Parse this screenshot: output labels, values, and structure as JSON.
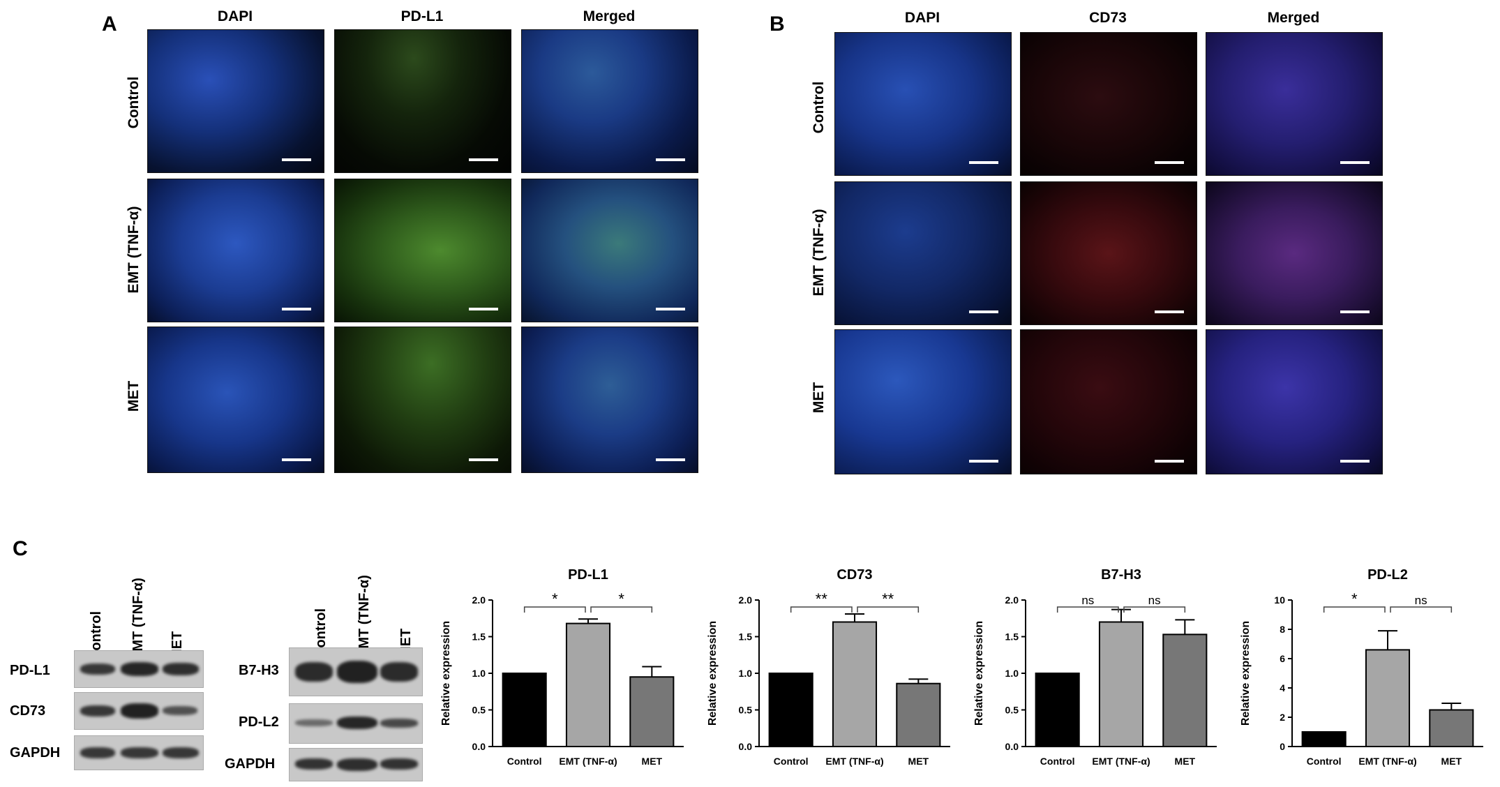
{
  "panels": {
    "A": {
      "letter": "A",
      "columns": [
        "DAPI",
        "PD-L1",
        "Merged"
      ],
      "rows": [
        "Control",
        "EMT (TNF-α)",
        "MET"
      ]
    },
    "B": {
      "letter": "B",
      "columns": [
        "DAPI",
        "CD73",
        "Merged"
      ],
      "rows": [
        "Control",
        "EMT (TNF-α)",
        "MET"
      ]
    },
    "C": {
      "letter": "C",
      "blot1": {
        "lanes": [
          "Control",
          "EMT (TNF-α)",
          "MET"
        ],
        "proteins": [
          "PD-L1",
          "CD73",
          "GAPDH"
        ]
      },
      "blot2": {
        "lanes": [
          "Control",
          "EMT (TNF-α)",
          "MET"
        ],
        "proteins": [
          "B7-H3",
          "PD-L2",
          "GAPDH"
        ]
      }
    }
  },
  "colors": {
    "dapi": "#1c3f9e",
    "pdl1": "#3f8a2a",
    "cd73": "#8a1a1a",
    "bar_control": "#000000",
    "bar_emt": "#a6a6a6",
    "bar_met": "#777777"
  },
  "chart_data": [
    {
      "type": "bar",
      "title": "PD-L1",
      "ylabel": "Relative expression",
      "categories": [
        "Control",
        "EMT (TNF-α)",
        "MET"
      ],
      "values": [
        1.0,
        1.68,
        0.95
      ],
      "errors": [
        0,
        0.06,
        0.14
      ],
      "ylim": [
        0,
        2.0
      ],
      "yticks": [
        "0.0",
        "0.5",
        "1.0",
        "1.5",
        "2.0"
      ],
      "significance": [
        "*",
        "*"
      ]
    },
    {
      "type": "bar",
      "title": "CD73",
      "ylabel": "Relative expression",
      "categories": [
        "Control",
        "EMT (TNF-α)",
        "MET"
      ],
      "values": [
        1.0,
        1.7,
        0.86
      ],
      "errors": [
        0,
        0.11,
        0.06
      ],
      "ylim": [
        0,
        2.0
      ],
      "yticks": [
        "0.0",
        "0.5",
        "1.0",
        "1.5",
        "2.0"
      ],
      "significance": [
        "**",
        "**"
      ]
    },
    {
      "type": "bar",
      "title": "B7-H3",
      "ylabel": "Relative expression",
      "categories": [
        "Control",
        "EMT (TNF-α)",
        "MET"
      ],
      "values": [
        1.0,
        1.7,
        1.53
      ],
      "errors": [
        0,
        0.17,
        0.2
      ],
      "ylim": [
        0,
        2.0
      ],
      "yticks": [
        "0.0",
        "0.5",
        "1.0",
        "1.5",
        "2.0"
      ],
      "significance": [
        "ns",
        "ns"
      ]
    },
    {
      "type": "bar",
      "title": "PD-L2",
      "ylabel": "Relative expression",
      "categories": [
        "Control",
        "EMT (TNF-α)",
        "MET"
      ],
      "values": [
        1.0,
        6.6,
        2.5
      ],
      "errors": [
        0,
        1.3,
        0.45
      ],
      "ylim": [
        0,
        10
      ],
      "yticks": [
        "0",
        "2",
        "4",
        "6",
        "8",
        "10"
      ],
      "significance": [
        "*",
        "ns"
      ]
    }
  ]
}
